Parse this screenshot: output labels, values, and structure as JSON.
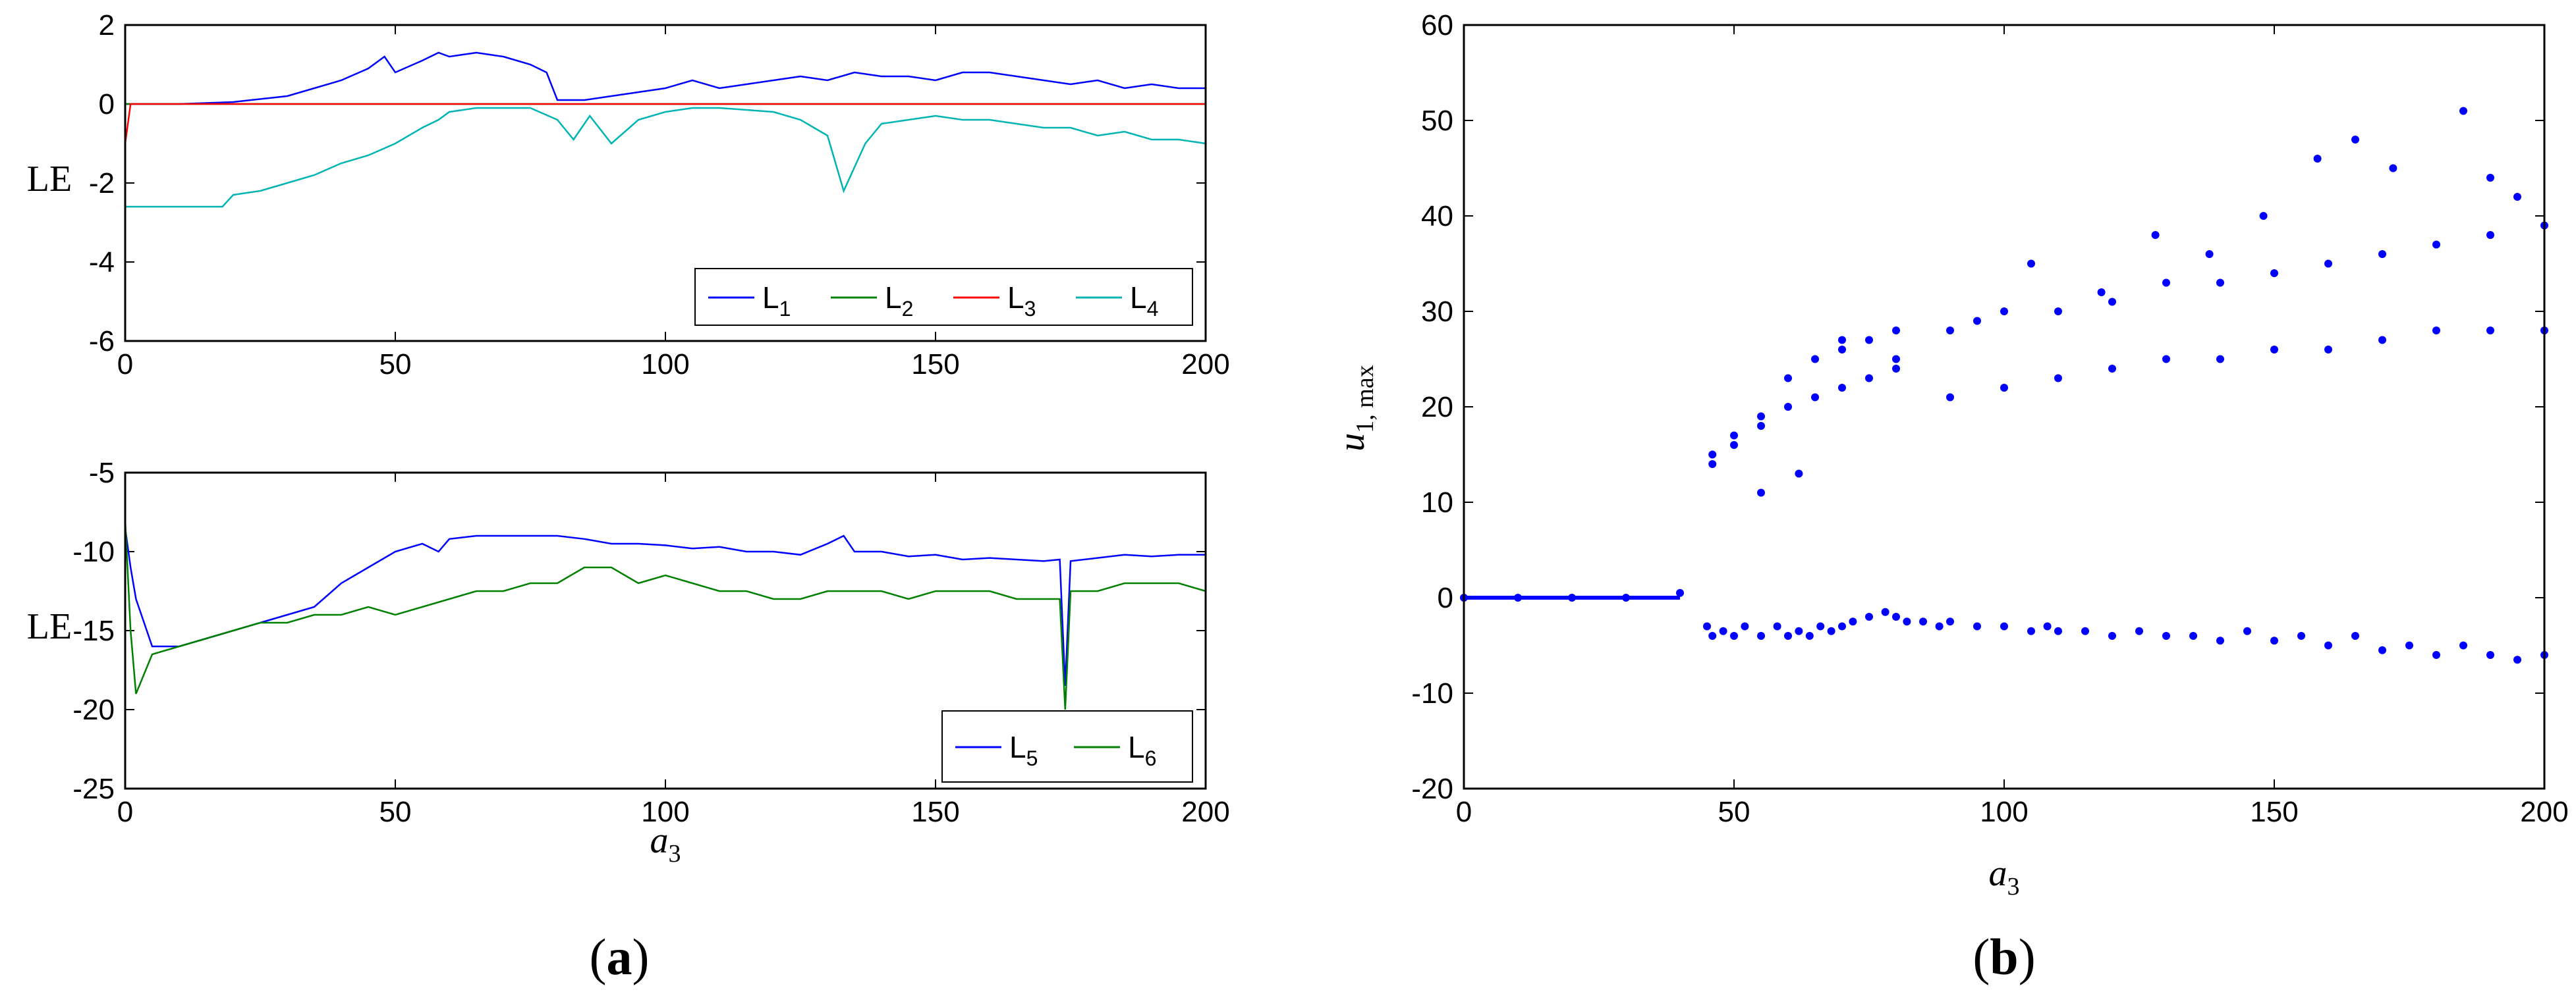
{
  "chart_data": [
    {
      "id": "a1",
      "type": "line",
      "panel": "a",
      "title": "",
      "xlabel": "",
      "ylabel": "LE",
      "xlim": [
        0,
        200
      ],
      "ylim": [
        -6,
        2
      ],
      "xticks": [
        0,
        50,
        100,
        150,
        200
      ],
      "yticks": [
        2,
        0,
        -2,
        -4,
        -6
      ],
      "legend": {
        "placement": "bottom-right",
        "entries": [
          "L1",
          "L2",
          "L3",
          "L4"
        ]
      },
      "series": [
        {
          "name": "L1",
          "color": "#0000ff",
          "x": [
            0,
            10,
            20,
            30,
            35,
            40,
            45,
            48,
            50,
            55,
            58,
            60,
            65,
            70,
            75,
            78,
            80,
            85,
            90,
            95,
            100,
            105,
            110,
            115,
            120,
            125,
            130,
            135,
            140,
            145,
            150,
            155,
            160,
            165,
            170,
            175,
            180,
            185,
            190,
            195,
            200
          ],
          "y": [
            0,
            0,
            0.05,
            0.2,
            0.4,
            0.6,
            0.9,
            1.2,
            0.8,
            1.1,
            1.3,
            1.2,
            1.3,
            1.2,
            1.0,
            0.8,
            0.1,
            0.1,
            0.2,
            0.3,
            0.4,
            0.6,
            0.4,
            0.5,
            0.6,
            0.7,
            0.6,
            0.8,
            0.7,
            0.7,
            0.6,
            0.8,
            0.8,
            0.7,
            0.6,
            0.5,
            0.6,
            0.4,
            0.5,
            0.4,
            0.4
          ]
        },
        {
          "name": "L2",
          "color": "#008000",
          "x": [
            0,
            50,
            100,
            150,
            200
          ],
          "y": [
            0,
            0,
            0,
            0,
            0
          ]
        },
        {
          "name": "L3",
          "color": "#ff0000",
          "x": [
            0,
            0.5,
            1,
            2,
            50,
            100,
            150,
            200
          ],
          "y": [
            -1.0,
            -0.5,
            0,
            0,
            0,
            0,
            0,
            0
          ]
        },
        {
          "name": "L4",
          "color": "#00b4b4",
          "x": [
            0,
            10,
            18,
            20,
            25,
            30,
            35,
            40,
            45,
            50,
            55,
            58,
            60,
            65,
            70,
            75,
            80,
            83,
            86,
            90,
            95,
            100,
            105,
            110,
            120,
            125,
            130,
            133,
            137,
            140,
            145,
            150,
            155,
            160,
            165,
            170,
            175,
            180,
            185,
            190,
            195,
            200
          ],
          "y": [
            -2.6,
            -2.6,
            -2.6,
            -2.3,
            -2.2,
            -2.0,
            -1.8,
            -1.5,
            -1.3,
            -1.0,
            -0.6,
            -0.4,
            -0.2,
            -0.1,
            -0.1,
            -0.1,
            -0.4,
            -0.9,
            -0.3,
            -1.0,
            -0.4,
            -0.2,
            -0.1,
            -0.1,
            -0.2,
            -0.4,
            -0.8,
            -2.2,
            -1.0,
            -0.5,
            -0.4,
            -0.3,
            -0.4,
            -0.4,
            -0.5,
            -0.6,
            -0.6,
            -0.8,
            -0.7,
            -0.9,
            -0.9,
            -1.0
          ]
        }
      ]
    },
    {
      "id": "a2",
      "type": "line",
      "panel": "a",
      "title": "",
      "xlabel": "a3",
      "ylabel": "LE",
      "xlim": [
        0,
        200
      ],
      "ylim": [
        -25,
        -5
      ],
      "xticks": [
        0,
        50,
        100,
        150,
        200
      ],
      "yticks": [
        -5,
        -10,
        -15,
        -20,
        -25
      ],
      "legend": {
        "placement": "bottom-right",
        "entries": [
          "L5",
          "L6"
        ]
      },
      "series": [
        {
          "name": "L5",
          "color": "#0000ff",
          "x": [
            0,
            1,
            2,
            5,
            10,
            15,
            20,
            25,
            30,
            35,
            40,
            45,
            50,
            55,
            58,
            60,
            65,
            70,
            75,
            80,
            85,
            90,
            95,
            100,
            105,
            110,
            115,
            120,
            125,
            130,
            133,
            135,
            140,
            145,
            150,
            155,
            160,
            165,
            170,
            173,
            174,
            175,
            180,
            185,
            190,
            195,
            200
          ],
          "y": [
            -8.5,
            -11,
            -13,
            -16,
            -16,
            -15.5,
            -15,
            -14.5,
            -14,
            -13.5,
            -12,
            -11,
            -10,
            -9.5,
            -10,
            -9.2,
            -9.0,
            -9.0,
            -9.0,
            -9.0,
            -9.2,
            -9.5,
            -9.5,
            -9.6,
            -9.8,
            -9.7,
            -10,
            -10,
            -10.2,
            -9.5,
            -9.0,
            -10,
            -10,
            -10.3,
            -10.2,
            -10.5,
            -10.4,
            -10.5,
            -10.6,
            -10.5,
            -18.5,
            -10.6,
            -10.4,
            -10.2,
            -10.3,
            -10.2,
            -10.2
          ]
        },
        {
          "name": "L6",
          "color": "#008000",
          "x": [
            0,
            1,
            2,
            5,
            10,
            15,
            20,
            25,
            30,
            35,
            40,
            45,
            50,
            55,
            60,
            65,
            70,
            75,
            80,
            85,
            90,
            95,
            100,
            105,
            110,
            115,
            120,
            125,
            130,
            135,
            140,
            145,
            150,
            155,
            160,
            165,
            170,
            173,
            174,
            175,
            180,
            185,
            190,
            195,
            200
          ],
          "y": [
            -8,
            -15,
            -19,
            -16.5,
            -16,
            -15.5,
            -15,
            -14.5,
            -14.5,
            -14,
            -14,
            -13.5,
            -14,
            -13.5,
            -13,
            -12.5,
            -12.5,
            -12,
            -12,
            -11,
            -11,
            -12,
            -11.5,
            -12,
            -12.5,
            -12.5,
            -13,
            -13,
            -12.5,
            -12.5,
            -12.5,
            -13,
            -12.5,
            -12.5,
            -12.5,
            -13,
            -13,
            -13,
            -20,
            -12.5,
            -12.5,
            -12,
            -12,
            -12,
            -12.5
          ]
        }
      ]
    },
    {
      "id": "b",
      "type": "scatter",
      "panel": "b",
      "title": "",
      "xlabel": "a3",
      "ylabel": "u1, max",
      "xlim": [
        0,
        200
      ],
      "ylim": [
        -20,
        60
      ],
      "xticks": [
        0,
        50,
        100,
        150,
        200
      ],
      "yticks": [
        60,
        50,
        40,
        30,
        20,
        10,
        0,
        -10,
        -20
      ],
      "series": [
        {
          "name": "",
          "color": "#0000ff",
          "x": [
            0,
            10,
            20,
            30,
            40,
            45,
            46,
            48,
            50,
            52,
            55,
            58,
            60,
            62,
            64,
            66,
            68,
            70,
            72,
            75,
            78,
            80,
            82,
            85,
            88,
            90,
            95,
            100,
            105,
            108,
            110,
            115,
            120,
            125,
            130,
            135,
            140,
            145,
            150,
            155,
            160,
            165,
            170,
            175,
            180,
            185,
            190,
            195,
            200,
            46,
            50,
            55,
            60,
            65,
            70,
            75,
            80,
            90,
            100,
            110,
            120,
            130,
            140,
            150,
            160,
            170,
            180,
            190,
            200,
            46,
            50,
            55,
            60,
            65,
            70,
            75,
            80,
            90,
            100,
            110,
            120,
            130,
            140,
            150,
            160,
            170,
            180,
            190,
            200,
            55,
            62,
            70,
            80,
            95,
            105,
            118,
            128,
            138,
            148,
            158,
            165,
            172,
            185,
            190,
            195
          ],
          "y": [
            0,
            0,
            0,
            0,
            0.5,
            -3,
            -4,
            -3.5,
            -4,
            -3,
            -4,
            -3,
            -4,
            -3.5,
            -4,
            -3,
            -3.5,
            -3,
            -2.5,
            -2,
            -1.5,
            -2,
            -2.5,
            -2.5,
            -3,
            -2.5,
            -3,
            -3,
            -3.5,
            -3,
            -3.5,
            -3.5,
            -4,
            -3.5,
            -4,
            -4,
            -4.5,
            -3.5,
            -4.5,
            -4,
            -5,
            -4,
            -5.5,
            -5,
            -6,
            -5,
            -6,
            -6.5,
            -6,
            15,
            17,
            18,
            20,
            21,
            22,
            23,
            24,
            21,
            22,
            23,
            24,
            25,
            25,
            26,
            26,
            27,
            28,
            28,
            28,
            14,
            16,
            19,
            23,
            25,
            26,
            27,
            28,
            28,
            30,
            30,
            31,
            33,
            33,
            34,
            35,
            36,
            37,
            38,
            39,
            11,
            13,
            27,
            25,
            29,
            35,
            32,
            38,
            36,
            40,
            46,
            48,
            45,
            51,
            44,
            42
          ]
        }
      ]
    }
  ],
  "captions": {
    "a": "(a)",
    "b": "(b)"
  }
}
